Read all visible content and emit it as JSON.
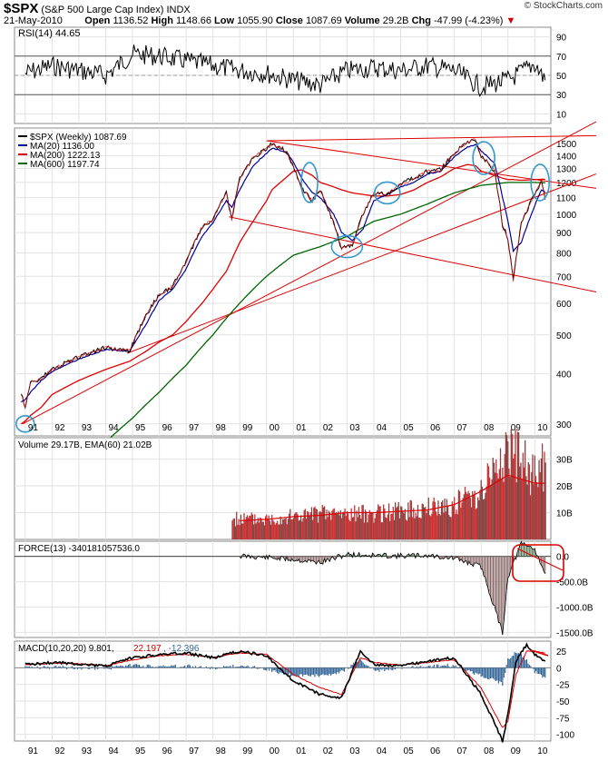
{
  "header": {
    "symbol": "$SPX",
    "name": "(S&P 500 Large Cap Index)",
    "exchange": "INDX",
    "date": "21-May-2010",
    "open_label": "Open",
    "open": "1136.52",
    "high_label": "High",
    "high": "1148.66",
    "low_label": "Low",
    "low": "1055.90",
    "close_label": "Close",
    "close": "1087.69",
    "volume_label": "Volume",
    "volume": "29.2B",
    "chg_label": "Chg",
    "chg": "-47.99 (-4.23%)",
    "watermark": "© StockCharts.com"
  },
  "colors": {
    "price": "#000000",
    "ma20": "#000099",
    "ma200": "#dd0000",
    "ma600": "#006600",
    "annotation": "#dd0000",
    "circle": "#3399cc",
    "volume": "#cc3333",
    "macd_hist": "#336699"
  },
  "chart_data": [
    {
      "type": "line",
      "panel": "rsi",
      "title": "RSI(14) 44.65",
      "ylim": [
        0,
        100
      ],
      "ticks": [
        10,
        30,
        50,
        70,
        90
      ],
      "ref_lines": [
        30,
        50,
        70
      ],
      "x": [
        1991,
        1992,
        1993,
        1994,
        1995,
        1996,
        1997,
        1998,
        1999,
        2000,
        2001,
        2002,
        2003,
        2004,
        2005,
        2006,
        2007,
        2008,
        2009,
        2010,
        2010.39
      ],
      "values": [
        52,
        60,
        55,
        50,
        72,
        70,
        65,
        60,
        55,
        52,
        45,
        40,
        55,
        58,
        55,
        60,
        55,
        38,
        45,
        62,
        45
      ]
    },
    {
      "type": "line",
      "panel": "price",
      "log_scale": true,
      "title": "$SPX (Weekly) 1087.69",
      "ticks": [
        300,
        400,
        500,
        600,
        700,
        800,
        900,
        1000,
        1100,
        1200,
        1300,
        1400,
        1500
      ],
      "xticks": [
        "91",
        "92",
        "93",
        "94",
        "95",
        "96",
        "97",
        "98",
        "99",
        "00",
        "01",
        "02",
        "03",
        "04",
        "05",
        "06",
        "07",
        "08",
        "09",
        "10"
      ],
      "legend": [
        {
          "name": "$SPX (Weekly) 1087.69"
        },
        {
          "name": "MA(20) 1136.00"
        },
        {
          "name": "MA(200) 1222.13"
        },
        {
          "name": "MA(600) 1197.74"
        }
      ],
      "x": [
        1990.85,
        1991,
        1991.2,
        1991.6,
        1992,
        1993,
        1994,
        1994.9,
        1995.5,
        1996,
        1996.5,
        1997,
        1997.6,
        1998,
        1998.5,
        1998.7,
        1999,
        1999.5,
        2000,
        2000.2,
        2000.7,
        2001,
        2001.3,
        2001.7,
        2002,
        2002.5,
        2002.8,
        2003.2,
        2003.6,
        2004,
        2004.5,
        2005,
        2005.5,
        2006,
        2006.5,
        2007,
        2007.5,
        2007.8,
        2008,
        2008.5,
        2008.8,
        2009,
        2009.2,
        2009.5,
        2010,
        2010.25,
        2010.39
      ],
      "price": [
        355,
        330,
        380,
        390,
        410,
        440,
        465,
        455,
        560,
        630,
        660,
        760,
        930,
        970,
        1130,
        970,
        1230,
        1380,
        1460,
        1500,
        1440,
        1320,
        1160,
        1080,
        1150,
        950,
        820,
        840,
        1000,
        1130,
        1120,
        1190,
        1230,
        1280,
        1290,
        1420,
        1520,
        1530,
        1400,
        1280,
        940,
        870,
        680,
        950,
        1120,
        1210,
        1087.69
      ],
      "ma20": [
        340,
        345,
        360,
        385,
        405,
        435,
        460,
        455,
        530,
        610,
        650,
        730,
        880,
        950,
        1080,
        1040,
        1150,
        1320,
        1420,
        1460,
        1430,
        1350,
        1230,
        1130,
        1100,
        1000,
        900,
        860,
        920,
        1080,
        1120,
        1170,
        1200,
        1260,
        1280,
        1390,
        1470,
        1490,
        1440,
        1340,
        1100,
        960,
        810,
        850,
        1050,
        1150,
        1136
      ],
      "ma200": [
        300,
        305,
        315,
        330,
        355,
        385,
        410,
        430,
        455,
        480,
        500,
        540,
        600,
        650,
        720,
        770,
        850,
        960,
        1080,
        1150,
        1230,
        1280,
        1290,
        1250,
        1200,
        1170,
        1150,
        1130,
        1120,
        1110,
        1110,
        1120,
        1150,
        1200,
        1240,
        1300,
        1330,
        1320,
        1280,
        1250,
        1230,
        1220,
        1220,
        1215,
        1220,
        1222,
        1222.13
      ],
      "ma600_x": [
        1994,
        1995,
        1996,
        1997,
        1998,
        1999,
        2000,
        2001,
        2002,
        2003,
        2004,
        2005,
        2006,
        2007,
        2008,
        2009,
        2010,
        2010.39
      ],
      "ma600": [
        270,
        310,
        360,
        420,
        500,
        600,
        700,
        790,
        830,
        880,
        960,
        1000,
        1060,
        1130,
        1180,
        1200,
        1200,
        1197.74
      ]
    },
    {
      "type": "bar",
      "panel": "volume",
      "title": "Volume 29.17B, EMA(60) 21.02B",
      "ticks": [
        "10B",
        "20B",
        "30B"
      ],
      "ylim": [
        0,
        38
      ],
      "x": [
        1999,
        2000,
        2001,
        2002,
        2003,
        2004,
        2005,
        2006,
        2007,
        2008,
        2009,
        2010,
        2010.39
      ],
      "values": [
        8,
        8,
        9,
        10,
        10,
        10,
        11,
        12,
        14,
        20,
        35,
        25,
        29.17
      ],
      "ema60": [
        7,
        7.5,
        8.5,
        9,
        10,
        10,
        10.5,
        11,
        13,
        18,
        24,
        21,
        21.02
      ]
    },
    {
      "type": "bar",
      "panel": "force",
      "title": "FORCE(13) -340181057536.0",
      "ticks": [
        "0.0",
        "-500.0B",
        "-1000.0B",
        "-1500.0B"
      ],
      "ylim": [
        -1600,
        300
      ],
      "x": [
        1999,
        2000,
        2001,
        2002,
        2003,
        2004,
        2005,
        2006,
        2007,
        2008,
        2008.8,
        2009,
        2009.5,
        2010,
        2010.39
      ],
      "values": [
        10,
        -20,
        -60,
        -120,
        40,
        20,
        10,
        20,
        -40,
        -200,
        -1500,
        -400,
        250,
        150,
        -340
      ]
    },
    {
      "type": "line",
      "panel": "macd",
      "title": "MACD(10,20,20) 9.801, 22.197, -12.396",
      "legend": [
        {
          "name": "9.801"
        },
        {
          "name": "22.197"
        },
        {
          "name": "-12.396"
        }
      ],
      "ticks": [
        25,
        0,
        -25,
        -50,
        -75,
        -100
      ],
      "ylim": [
        -110,
        40
      ],
      "x": [
        1991,
        1992,
        1993,
        1994,
        1995,
        1996,
        1997,
        1998,
        1999,
        2000,
        2001,
        2002,
        2002.8,
        2003.5,
        2004,
        2005,
        2006,
        2007,
        2008,
        2008.8,
        2009,
        2009.3,
        2009.7,
        2010,
        2010.39
      ],
      "macd": [
        5,
        8,
        6,
        2,
        15,
        20,
        22,
        15,
        25,
        18,
        -20,
        -40,
        -45,
        25,
        5,
        3,
        10,
        15,
        -40,
        -110,
        -70,
        10,
        35,
        20,
        9.8
      ],
      "signal": [
        4,
        7,
        6,
        3,
        12,
        18,
        20,
        16,
        22,
        20,
        -10,
        -30,
        -40,
        15,
        8,
        4,
        8,
        12,
        -30,
        -90,
        -80,
        -10,
        25,
        25,
        22.2
      ]
    }
  ]
}
